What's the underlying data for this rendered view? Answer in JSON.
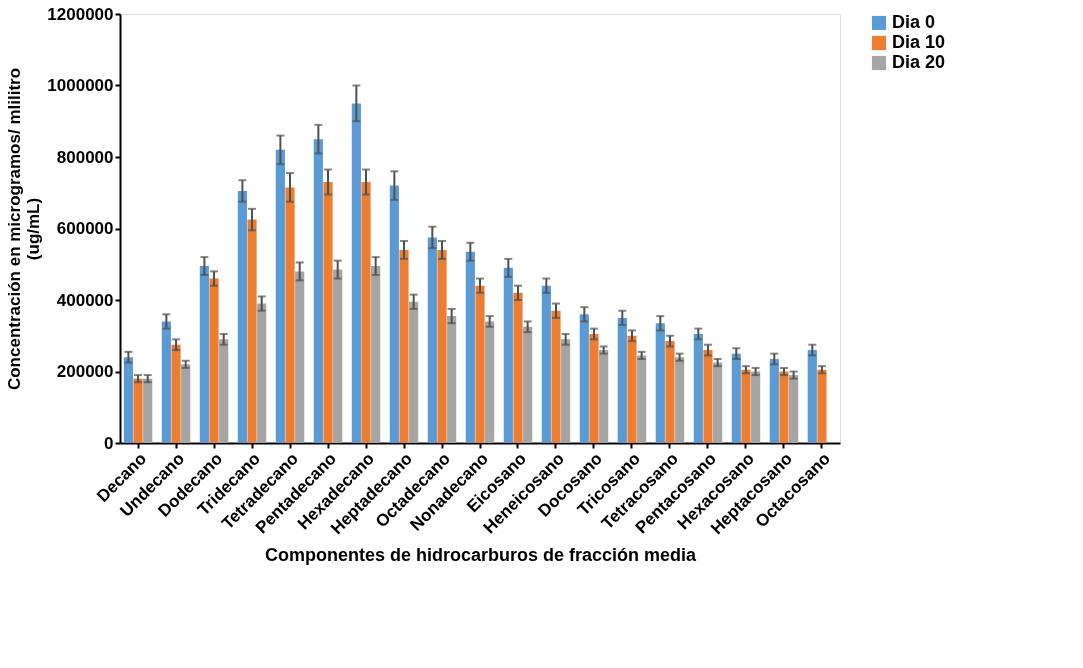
{
  "chart_data": {
    "type": "bar",
    "xlabel": "Componentes de hidrocarburos de fracción media",
    "ylabel": "Concentración en microgramos/ mlilitro (ug/mL)",
    "categories": [
      "Decano",
      "Undecano",
      "Dodecano",
      "Tridecano",
      "Tetradecano",
      "Pentadecano",
      "Hexadecano",
      "Heptadecano",
      "Octadecano",
      "Nonadecano",
      "Eicosano",
      "Heneicosano",
      "Docosano",
      "Tricosano",
      "Tetracosano",
      "Pentacosano",
      "Hexacosano",
      "Heptacosano",
      "Octacosano"
    ],
    "series": [
      {
        "name": "Dia 0",
        "color": "#5b9bd5",
        "values": [
          240000,
          340000,
          495000,
          705000,
          820000,
          850000,
          950000,
          720000,
          575000,
          535000,
          490000,
          440000,
          360000,
          350000,
          335000,
          305000,
          250000,
          235000,
          260000
        ],
        "errors": [
          15000,
          20000,
          25000,
          30000,
          40000,
          40000,
          50000,
          40000,
          30000,
          25000,
          25000,
          20000,
          20000,
          20000,
          20000,
          15000,
          15000,
          15000,
          15000
        ]
      },
      {
        "name": "Dia 10",
        "color": "#ed7d31",
        "values": [
          180000,
          275000,
          460000,
          625000,
          715000,
          730000,
          730000,
          540000,
          540000,
          440000,
          420000,
          370000,
          305000,
          300000,
          285000,
          260000,
          205000,
          200000,
          205000
        ],
        "errors": [
          10000,
          15000,
          20000,
          30000,
          40000,
          35000,
          35000,
          25000,
          25000,
          20000,
          20000,
          20000,
          15000,
          15000,
          15000,
          15000,
          10000,
          10000,
          10000
        ]
      },
      {
        "name": "Dia 20",
        "color": "#a5a5a5",
        "values": [
          180000,
          220000,
          290000,
          390000,
          480000,
          485000,
          495000,
          395000,
          355000,
          340000,
          325000,
          290000,
          260000,
          245000,
          240000,
          225000,
          200000,
          190000,
          null
        ],
        "errors": [
          10000,
          10000,
          15000,
          20000,
          25000,
          25000,
          25000,
          20000,
          20000,
          15000,
          15000,
          15000,
          10000,
          10000,
          10000,
          10000,
          10000,
          10000,
          null
        ]
      }
    ],
    "ylim": [
      0,
      1200000
    ],
    "yticks": [
      0,
      200000,
      400000,
      600000,
      800000,
      1000000,
      1200000
    ],
    "grid": false,
    "legend": "right"
  }
}
